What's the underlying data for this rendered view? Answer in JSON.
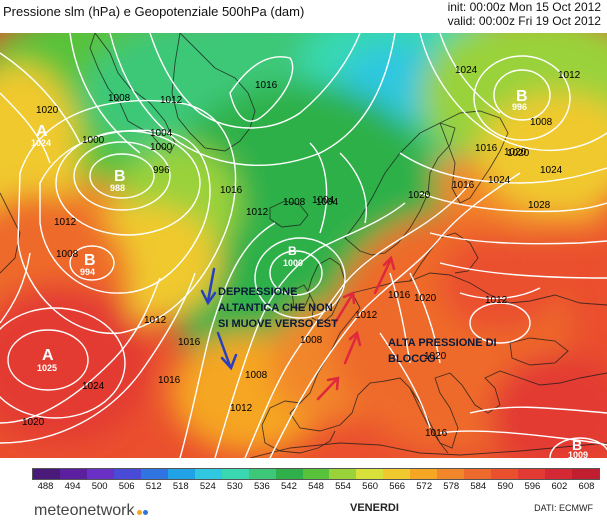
{
  "header": {
    "title": "Pressione slm (hPa) e Geopotenziale 500hPa (dam)",
    "init": "init: 00:00z Mon 15 Oct 2012",
    "valid": "valid: 00:00z Fri 19 Oct 2012"
  },
  "map": {
    "pressure_centers": [
      {
        "type": "A",
        "value": "1024"
      },
      {
        "type": "B",
        "value": "988"
      },
      {
        "type": "B",
        "value": "994"
      },
      {
        "type": "A",
        "value": "1025"
      },
      {
        "type": "B",
        "value": "1000"
      },
      {
        "type": "B",
        "value": "996"
      },
      {
        "type": "B",
        "value": "1009"
      }
    ],
    "isobar_labels": [
      "1020",
      "1000",
      "1008",
      "1012",
      "1004",
      "1000",
      "996",
      "1016",
      "1012",
      "1008",
      "1004",
      "1008",
      "1012",
      "1016",
      "1020",
      "1024",
      "1028",
      "1008",
      "1012",
      "1016",
      "1020",
      "1024",
      "1016",
      "1012",
      "1008",
      "1008",
      "1016",
      "1012",
      "1004",
      "1016",
      "1012",
      "1020",
      "1020",
      "1012",
      "1016",
      "1020",
      "1024",
      "1024",
      "1016",
      "1020"
    ],
    "annotations": {
      "left": "DEPRESSIONE\nALTANTICA CHE NON\nSI MUOVE VERSO EST",
      "right": "ALTA PRESSIONE DI\nBLOCCO"
    },
    "arrow_colors": {
      "blue": "#2a3fbf",
      "red": "#e0283c"
    }
  },
  "legend": {
    "ticks": [
      "488",
      "494",
      "500",
      "506",
      "512",
      "518",
      "524",
      "530",
      "536",
      "542",
      "548",
      "554",
      "560",
      "566",
      "572",
      "578",
      "584",
      "590",
      "596",
      "602",
      "608"
    ],
    "colors": [
      "#4a1a7a",
      "#5b1fa0",
      "#6a2fc4",
      "#4a4ad8",
      "#2f74e0",
      "#22a2e6",
      "#2fc8e0",
      "#39d8b0",
      "#3cc878",
      "#2fb04a",
      "#58c23a",
      "#9ad23a",
      "#d8e03a",
      "#f0c92e",
      "#f5a623",
      "#f2862a",
      "#ee6a2c",
      "#ea4f2e",
      "#e33a33",
      "#d52835",
      "#c11f30"
    ]
  },
  "footer": {
    "day": "VENERDI",
    "brand": "meteonetwork",
    "data_source": "DATI: ECMWF"
  }
}
